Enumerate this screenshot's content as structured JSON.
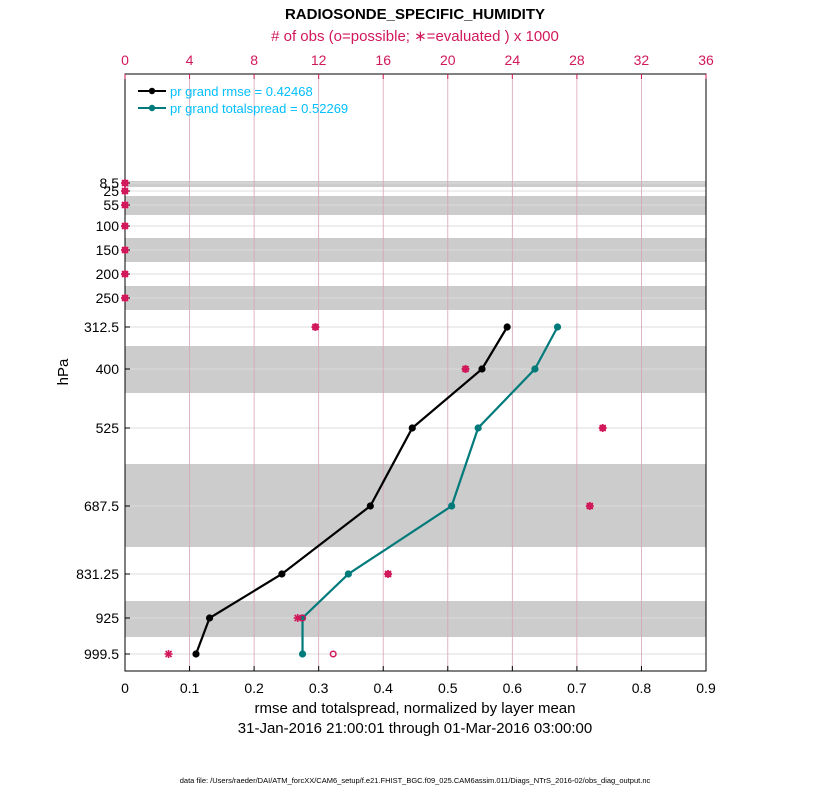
{
  "chart_data": {
    "type": "line",
    "title": "RADIOSONDE_SPECIFIC_HUMIDITY",
    "top_axis_label": "# of obs (o=possible; ∗=evaluated ) x 1000",
    "top_ticks": [
      "0",
      "4",
      "8",
      "12",
      "16",
      "20",
      "24",
      "28",
      "32",
      "36"
    ],
    "top_range": [
      0,
      36
    ],
    "xlabel": "rmse and totalspread, normalized by layer mean",
    "x_ticks": [
      "0",
      "0.1",
      "0.2",
      "0.3",
      "0.4",
      "0.5",
      "0.6",
      "0.7",
      "0.8",
      "0.9"
    ],
    "xlim": [
      0,
      0.9
    ],
    "ylabel": "hPa",
    "y_ticks": [
      "8.5",
      "25",
      "55",
      "100",
      "150",
      "200",
      "250",
      "312.5",
      "400",
      "525",
      "687.5",
      "831.25",
      "925",
      "999.5"
    ],
    "levels": [
      8.5,
      25,
      55,
      100,
      150,
      200,
      250,
      312.5,
      400,
      525,
      687.5,
      831.25,
      925,
      999.5
    ],
    "date_range": "31-Jan-2016 21:00:01 through 01-Mar-2016 03:00:00",
    "legend_position": "top-left",
    "series": [
      {
        "name": "rmse",
        "legend": "pr grand rmse = 0.42468",
        "color": "#000000",
        "levels": [
          312.5,
          400,
          525,
          687.5,
          831.25,
          925,
          999.5
        ],
        "values": [
          0.592,
          0.553,
          0.445,
          0.38,
          0.243,
          0.131,
          0.11
        ]
      },
      {
        "name": "totalspread",
        "legend": "pr grand totalspread = 0.52269",
        "color": "#007a7a",
        "levels": [
          312.5,
          400,
          525,
          687.5,
          831.25,
          925,
          999.5
        ],
        "values": [
          0.67,
          0.635,
          0.547,
          0.506,
          0.346,
          0.275,
          0.275
        ]
      }
    ],
    "obs_evaluated": {
      "levels": [
        8.5,
        25,
        55,
        100,
        150,
        200,
        250,
        312.5,
        400,
        525,
        687.5,
        831.25,
        925,
        999.5
      ],
      "values": [
        0,
        0,
        0,
        0,
        0,
        0,
        0,
        11.8,
        21.1,
        29.6,
        28.8,
        16.3,
        10.7,
        2.7
      ]
    },
    "obs_possible": {
      "levels": [
        8.5,
        25,
        55,
        100,
        150,
        200,
        250,
        312.5,
        400,
        525,
        687.5,
        831.25,
        925,
        999.5
      ],
      "values": [
        0,
        0,
        0,
        0,
        0,
        0,
        0,
        11.8,
        21.1,
        29.6,
        28.8,
        16.3,
        11.0,
        12.9
      ]
    },
    "colors": {
      "rmse": "#000000",
      "spread": "#007a7a",
      "obs": "#d1185a",
      "legend_text": "#00bfff",
      "top_axis": "#d1185a",
      "band": "#cccccc",
      "grid": "#dddddd"
    }
  },
  "footer": {
    "datafile": "data file: /Users/raeder/DAI/ATM_forcXX/CAM6_setup/f.e21.FHIST_BGC.f09_025.CAM6assim.011/Diags_NTrS_2016-02/obs_diag_output.nc"
  }
}
